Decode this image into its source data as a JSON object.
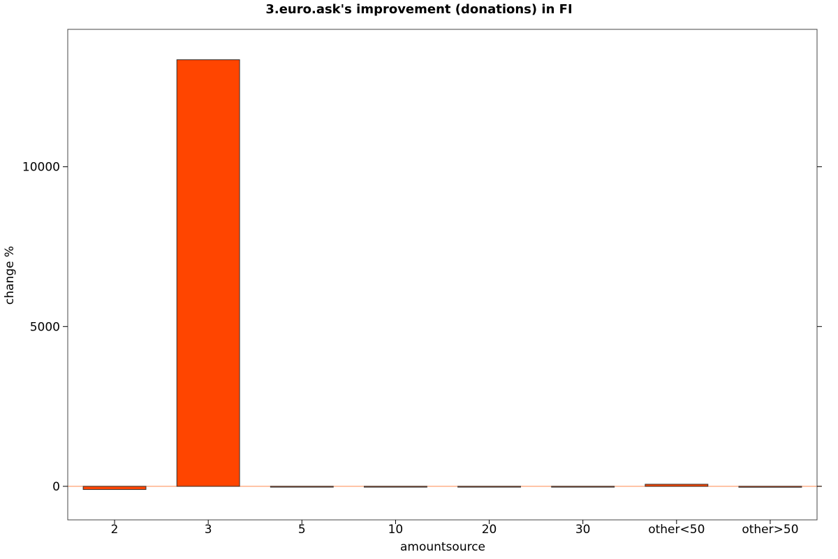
{
  "chart_data": {
    "type": "bar",
    "title": "3.euro.ask's improvement (donations) in FI",
    "xlabel": "amountsource",
    "ylabel": "change %",
    "categories": [
      "2",
      "3",
      "5",
      "10",
      "20",
      "30",
      "other<50",
      "other>50"
    ],
    "values": [
      -100,
      13350,
      -15,
      -8,
      -20,
      -8,
      65,
      -30
    ],
    "ylim": [
      -1050,
      14300
    ],
    "yticks": [
      0,
      5000,
      10000
    ],
    "ytick_labels": [
      "0",
      "5000",
      "10000"
    ],
    "grid": false,
    "legend": "none",
    "colors": {
      "bar_fill": "#FF4500",
      "bar_stroke": "#333333",
      "reference_line": "#FFB08A",
      "frame": "#444444"
    }
  }
}
